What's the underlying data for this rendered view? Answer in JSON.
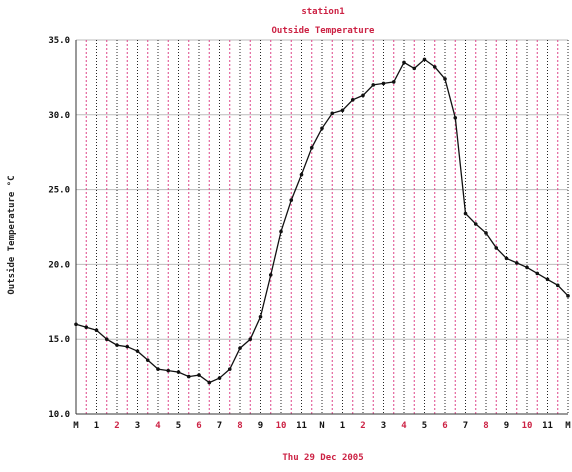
{
  "chart_data": {
    "type": "line",
    "title": "station1",
    "subtitle": "Outside Temperature",
    "xlabel": "Thu 29 Dec 2005",
    "ylabel": "Outside Temperature  °C",
    "ylim": [
      10.0,
      35.0
    ],
    "yticks": [
      "10.0",
      "15.0",
      "20.0",
      "25.0",
      "30.0",
      "35.0"
    ],
    "xlim": [
      0,
      24
    ],
    "xticks": [
      "M",
      "1",
      "2",
      "3",
      "4",
      "5",
      "6",
      "7",
      "8",
      "9",
      "10",
      "11",
      "N",
      "1",
      "2",
      "3",
      "4",
      "5",
      "6",
      "7",
      "8",
      "9",
      "10",
      "11",
      "M"
    ],
    "grid": true,
    "colors": {
      "line": "#111111",
      "grid_black": "#222222",
      "grid_pink": "#dd4488",
      "hgrid": "#bbbbbb",
      "axis_text": "#111111",
      "title": "#cc2244"
    },
    "series": [
      {
        "x": [
          0,
          0.5,
          1,
          1.5,
          2,
          2.5,
          3,
          3.5,
          4,
          4.5,
          5,
          5.5,
          6,
          6.5,
          7,
          7.5,
          8,
          8.5,
          9,
          9.5,
          10,
          10.5,
          11,
          11.5,
          12,
          12.5,
          13,
          13.5,
          14,
          14.5,
          15,
          15.5,
          16,
          16.5,
          17,
          17.5,
          18,
          18.5,
          19,
          19.5,
          20,
          20.5,
          21,
          21.5,
          22,
          22.5,
          23,
          23.5,
          24
        ],
        "y": [
          16.0,
          15.8,
          15.6,
          15.0,
          14.6,
          14.5,
          14.2,
          13.6,
          13.0,
          12.9,
          12.8,
          12.5,
          12.6,
          12.1,
          12.4,
          13.0,
          14.4,
          15.0,
          16.5,
          19.3,
          22.2,
          24.3,
          26.0,
          27.8,
          29.1,
          30.1,
          30.3,
          31.0,
          31.3,
          32.0,
          32.1,
          32.2,
          33.5,
          33.1,
          33.7,
          33.2,
          32.4,
          29.8,
          23.4,
          22.7,
          22.1,
          21.1,
          20.4,
          20.1,
          19.8,
          19.4,
          19.0,
          18.6,
          17.9
        ]
      }
    ]
  }
}
